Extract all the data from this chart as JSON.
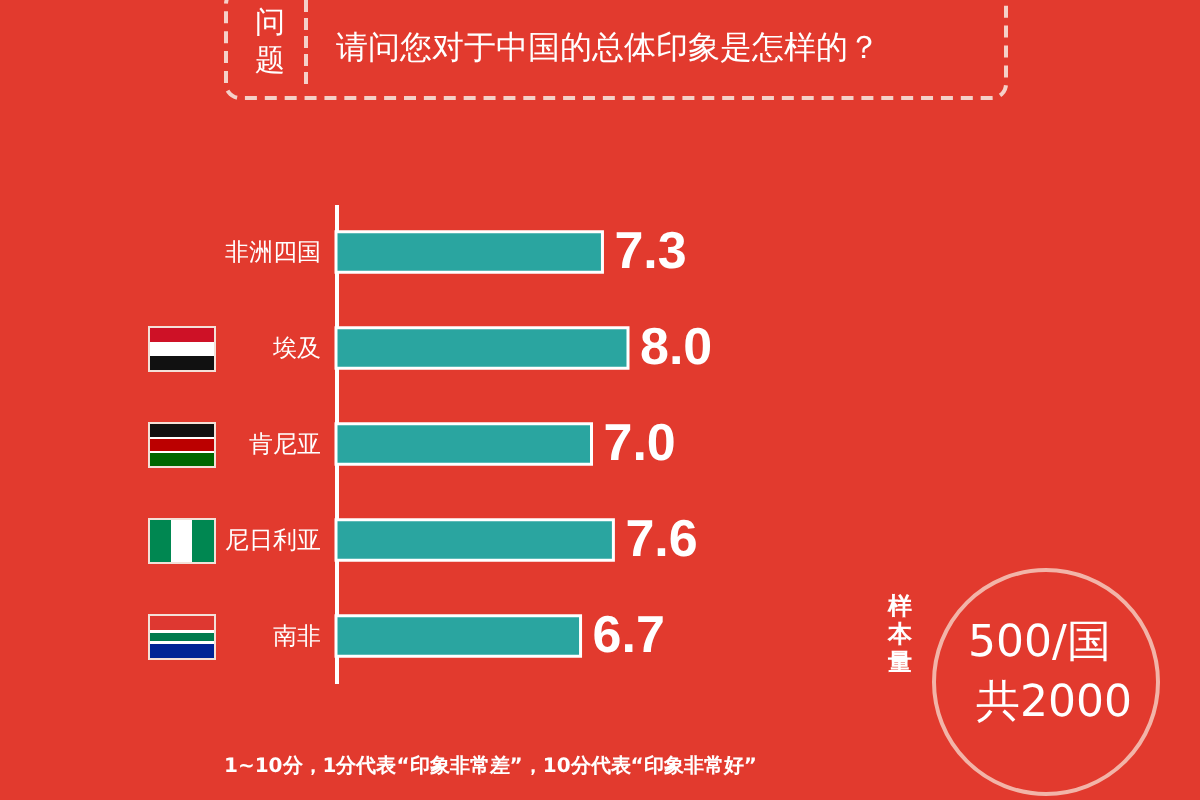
{
  "chart_data": {
    "type": "bar",
    "orientation": "horizontal",
    "title": "请问您对于中国的总体印象是怎样的？",
    "categories": [
      "非洲四国",
      "埃及",
      "肯尼亚",
      "尼日利亚",
      "南非"
    ],
    "values": [
      7.3,
      8.0,
      7.0,
      7.6,
      6.7
    ],
    "value_labels": [
      "7.3",
      "8.0",
      "7.0",
      "7.6",
      "6.7"
    ],
    "color": "#2aa5a0",
    "annotations": [
      "问题",
      "样本量",
      "500/国",
      "共2000",
      "1~10分，1分代表“印象非常差”，10分代表“印象非常好”"
    ]
  }
}
